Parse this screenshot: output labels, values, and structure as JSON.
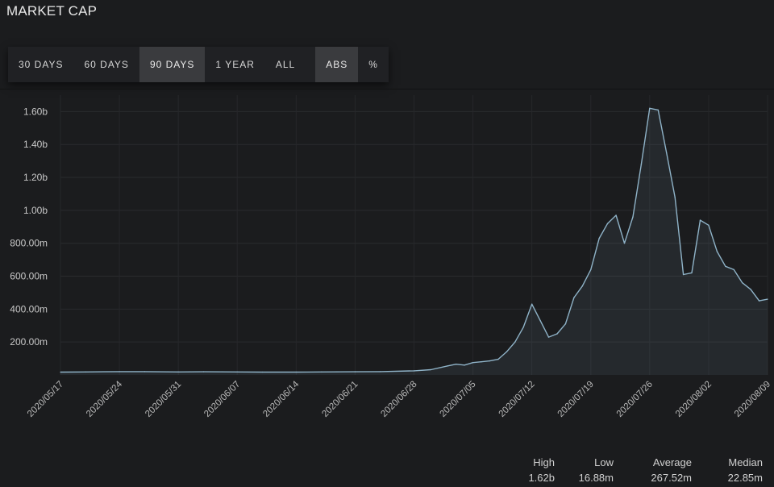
{
  "header": {
    "title": "MARKET CAP"
  },
  "toolbar": {
    "ranges": [
      "30 DAYS",
      "60 DAYS",
      "90 DAYS",
      "1 YEAR",
      "ALL"
    ],
    "active_range": "90 DAYS",
    "modes": [
      "ABS",
      "%"
    ],
    "active_mode": "ABS"
  },
  "chart_data": {
    "type": "area",
    "title": "MARKET CAP",
    "xlabel": "",
    "ylabel": "",
    "x_ticks": [
      "2020/05/17",
      "2020/05/24",
      "2020/05/31",
      "2020/06/07",
      "2020/06/14",
      "2020/06/21",
      "2020/06/28",
      "2020/07/05",
      "2020/07/12",
      "2020/07/19",
      "2020/07/26",
      "2020/08/02",
      "2020/08/09"
    ],
    "y_ticks": [
      "200.00m",
      "400.00m",
      "600.00m",
      "800.00m",
      "1.00b",
      "1.20b",
      "1.40b",
      "1.60b"
    ],
    "ylim": [
      0,
      1.7
    ],
    "y_unit": "billions",
    "grid": true,
    "color": "#8fb3c8",
    "series": [
      {
        "points": [
          [
            "2020/05/17",
            0.017
          ],
          [
            "2020/05/20",
            0.018
          ],
          [
            "2020/05/24",
            0.02
          ],
          [
            "2020/05/27",
            0.02
          ],
          [
            "2020/05/31",
            0.018
          ],
          [
            "2020/06/03",
            0.019
          ],
          [
            "2020/06/07",
            0.018
          ],
          [
            "2020/06/10",
            0.017
          ],
          [
            "2020/06/14",
            0.017
          ],
          [
            "2020/06/17",
            0.018
          ],
          [
            "2020/06/21",
            0.019
          ],
          [
            "2020/06/24",
            0.02
          ],
          [
            "2020/06/28",
            0.025
          ],
          [
            "2020/06/30",
            0.032
          ],
          [
            "2020/07/02",
            0.055
          ],
          [
            "2020/07/03",
            0.065
          ],
          [
            "2020/07/04",
            0.06
          ],
          [
            "2020/07/05",
            0.075
          ],
          [
            "2020/07/06",
            0.08
          ],
          [
            "2020/07/07",
            0.085
          ],
          [
            "2020/07/08",
            0.095
          ],
          [
            "2020/07/09",
            0.14
          ],
          [
            "2020/07/10",
            0.2
          ],
          [
            "2020/07/11",
            0.29
          ],
          [
            "2020/07/12",
            0.43
          ],
          [
            "2020/07/13",
            0.33
          ],
          [
            "2020/07/14",
            0.23
          ],
          [
            "2020/07/15",
            0.25
          ],
          [
            "2020/07/16",
            0.31
          ],
          [
            "2020/07/17",
            0.47
          ],
          [
            "2020/07/18",
            0.54
          ],
          [
            "2020/07/19",
            0.64
          ],
          [
            "2020/07/20",
            0.83
          ],
          [
            "2020/07/21",
            0.92
          ],
          [
            "2020/07/22",
            0.97
          ],
          [
            "2020/07/23",
            0.8
          ],
          [
            "2020/07/24",
            0.96
          ],
          [
            "2020/07/25",
            1.28
          ],
          [
            "2020/07/26",
            1.62
          ],
          [
            "2020/07/27",
            1.61
          ],
          [
            "2020/07/28",
            1.35
          ],
          [
            "2020/07/29",
            1.08
          ],
          [
            "2020/07/30",
            0.61
          ],
          [
            "2020/07/31",
            0.62
          ],
          [
            "2020/08/01",
            0.94
          ],
          [
            "2020/08/02",
            0.91
          ],
          [
            "2020/08/03",
            0.75
          ],
          [
            "2020/08/04",
            0.66
          ],
          [
            "2020/08/05",
            0.64
          ],
          [
            "2020/08/06",
            0.56
          ],
          [
            "2020/08/07",
            0.52
          ],
          [
            "2020/08/08",
            0.45
          ],
          [
            "2020/08/09",
            0.46
          ]
        ]
      }
    ]
  },
  "stats": [
    {
      "key": "high",
      "label": "High",
      "value": "1.62b"
    },
    {
      "key": "low",
      "label": "Low",
      "value": "16.88m"
    },
    {
      "key": "avg",
      "label": "Average",
      "value": "267.52m"
    },
    {
      "key": "med",
      "label": "Median",
      "value": "22.85m"
    }
  ]
}
